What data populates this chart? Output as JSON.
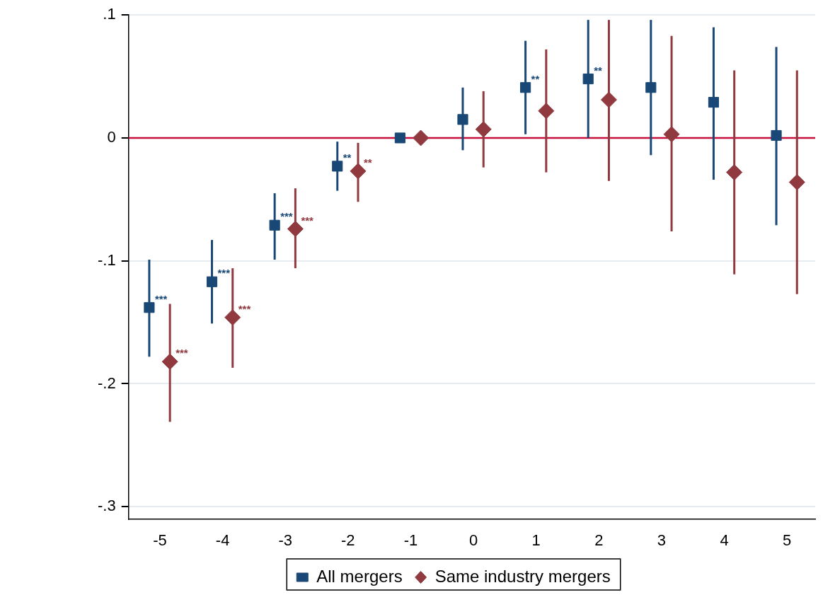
{
  "chart_data": {
    "type": "scatter",
    "grid": "y",
    "legend": "bottom",
    "xlim": [
      -5.5,
      5.45
    ],
    "xticks": [
      -5,
      -4,
      -3,
      -2,
      -1,
      0,
      1,
      2,
      3,
      4,
      5
    ],
    "ylim": [
      -0.31,
      0.1
    ],
    "yticks": [
      {
        "value": 0.1,
        "label": ".1"
      },
      {
        "value": 0,
        "label": "0"
      },
      {
        "value": -0.1,
        "label": "-.1"
      },
      {
        "value": -0.2,
        "label": "-.2"
      },
      {
        "value": -0.3,
        "label": "-.3"
      }
    ],
    "ref_lines": [
      {
        "axis": "y",
        "value": 0,
        "label": null,
        "color": "#c8103c"
      }
    ],
    "series": [
      {
        "name": "All mergers",
        "color": "#1a4876",
        "marker": "square",
        "x": [
          -5.17,
          -4.17,
          -3.17,
          -2.17,
          -1.17,
          -0.17,
          0.83,
          1.83,
          2.83,
          3.83,
          4.83
        ],
        "values": [
          -0.138,
          -0.117,
          -0.071,
          -0.023,
          0,
          0.015,
          0.041,
          0.048,
          0.041,
          0.029,
          0.002
        ],
        "errors": [
          [
            -0.178,
            -0.099
          ],
          [
            -0.151,
            -0.083
          ],
          [
            -0.099,
            -0.045
          ],
          [
            -0.043,
            -0.003
          ],
          null,
          [
            -0.01,
            0.041
          ],
          [
            0.003,
            0.079
          ],
          [
            0.0,
            0.096
          ],
          [
            -0.014,
            0.096
          ],
          [
            -0.034,
            0.09
          ],
          [
            -0.071,
            0.074
          ]
        ],
        "value_labels": [
          "***",
          "***",
          "***",
          "**",
          null,
          null,
          "**",
          "**",
          null,
          null,
          null
        ]
      },
      {
        "name": "Same industry mergers",
        "color": "#903a3f",
        "marker": "diamond",
        "x": [
          -4.84,
          -3.84,
          -2.84,
          -1.84,
          -0.84,
          0.16,
          1.16,
          2.16,
          3.16,
          4.16,
          5.16
        ],
        "values": [
          -0.182,
          -0.146,
          -0.074,
          -0.027,
          0,
          0.007,
          0.022,
          0.031,
          0.003,
          -0.028,
          -0.036
        ],
        "errors": [
          [
            -0.231,
            -0.135
          ],
          [
            -0.187,
            -0.106
          ],
          [
            -0.106,
            -0.041
          ],
          [
            -0.052,
            -0.004
          ],
          null,
          [
            -0.024,
            0.038
          ],
          [
            -0.028,
            0.072
          ],
          [
            -0.035,
            0.096
          ],
          [
            -0.076,
            0.083
          ],
          [
            -0.111,
            0.055
          ],
          [
            -0.127,
            0.055
          ]
        ],
        "value_labels": [
          "***",
          "***",
          "***",
          "**",
          null,
          null,
          null,
          null,
          null,
          null,
          null
        ]
      }
    ]
  }
}
